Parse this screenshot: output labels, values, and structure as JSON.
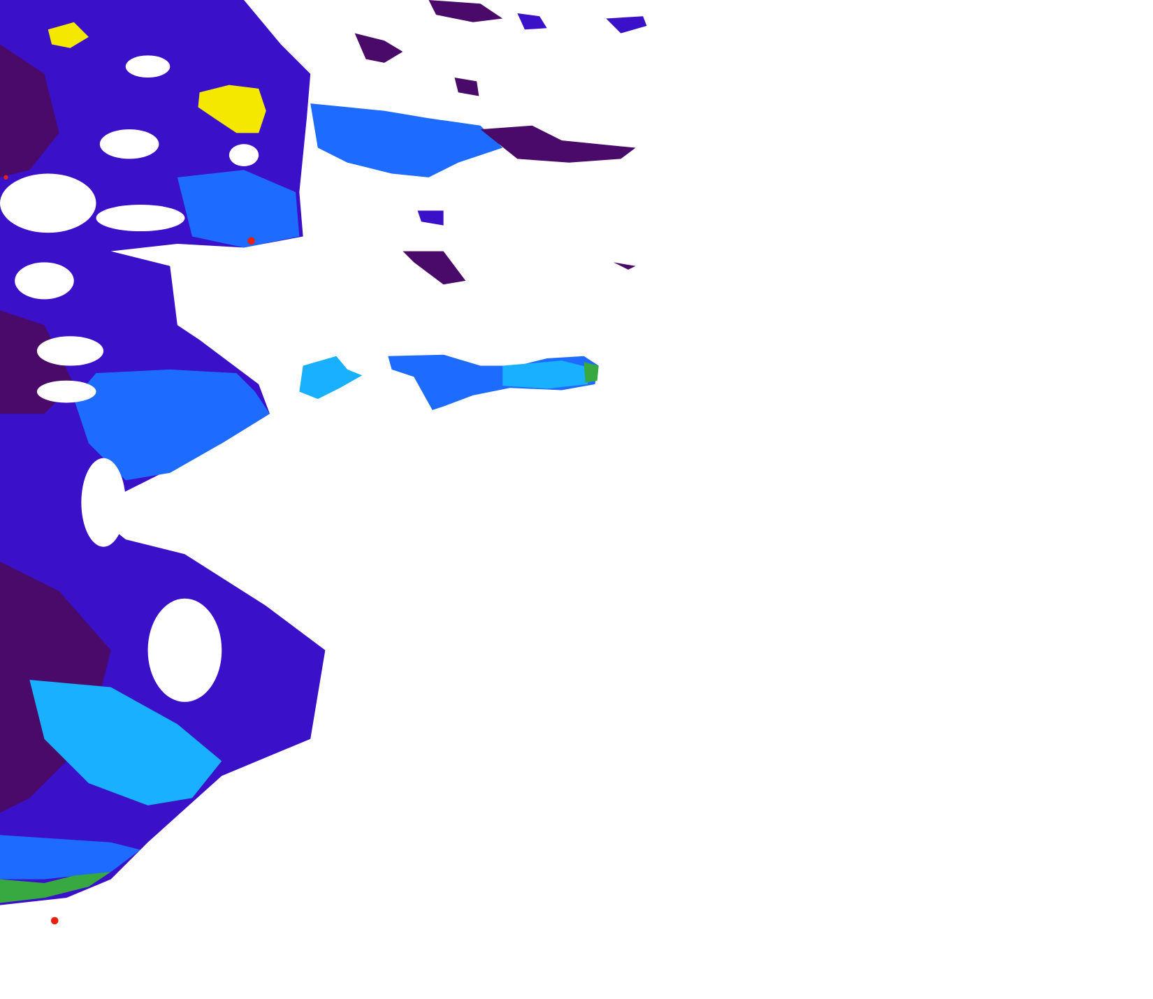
{
  "map": {
    "background": "#ffffff",
    "colormap": {
      "lowest": "#4a0a6a",
      "low": "#3a10c8",
      "low_mid": "#1e6bff",
      "mid": "#18b0ff",
      "mid_high": "#20d060",
      "high": "#f5e800",
      "highest": "#e82010",
      "no_data": "#ffffff"
    }
  }
}
